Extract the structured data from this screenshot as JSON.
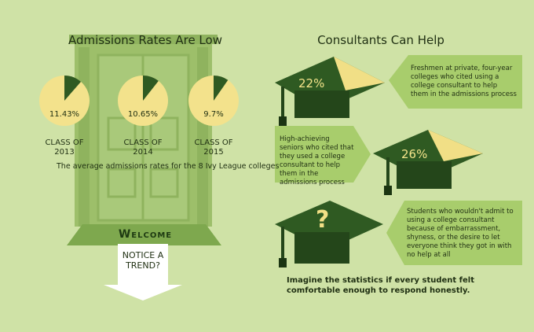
{
  "left": {
    "title": "Admissions Rates Are Low",
    "pies": [
      {
        "value": 11.43,
        "label": "11.43%",
        "class": "CLASS OF 2013"
      },
      {
        "value": 10.65,
        "label": "10.65%",
        "class": "CLASS OF 2014"
      },
      {
        "value": 9.7,
        "label": "9.7%",
        "class": "CLASS OF 2015"
      }
    ],
    "caption": "The average admissions rates for the 8 Ivy League colleges",
    "door_sign": "Welcome",
    "arrow_text": "NOTICE A TREND?"
  },
  "right": {
    "title": "Consultants Can Help",
    "items": [
      {
        "figure": "22%",
        "text": "Freshmen at private, four-year colleges who cited using a college consultant to help them in the admissions process"
      },
      {
        "figure": "26%",
        "text": "High-achieving seniors who cited that they used a college consultant to help them in the admissions process"
      },
      {
        "figure": "?",
        "text": "Students who wouldn't admit to using a college consultant because of embarrassment, shyness, or the desire to let everyone think they got in with no help at all"
      }
    ],
    "footer": "Imagine the statistics if every student felt comfortable enough to respond honestly."
  }
}
